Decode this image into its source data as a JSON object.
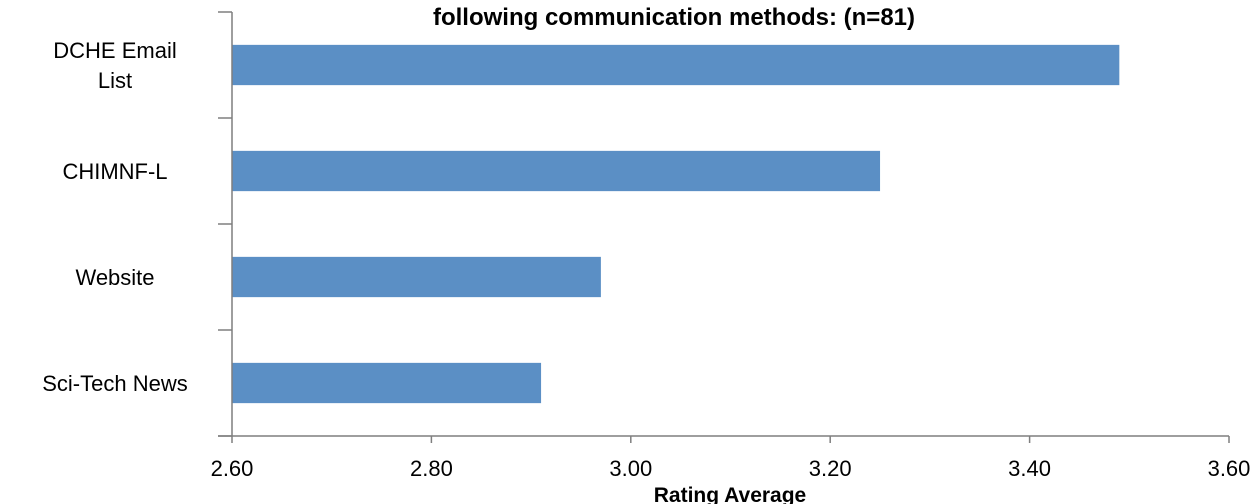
{
  "chart_data": {
    "type": "bar",
    "orientation": "horizontal",
    "title": "following communication methods: (n=81)",
    "xlabel": "Rating Average",
    "ylabel": "",
    "categories": [
      "DCHE Email List",
      "CHIMNF-L",
      "Website",
      "Sci-Tech News"
    ],
    "category_lines": [
      [
        "DCHE Email",
        "List"
      ],
      [
        "CHIMNF-L"
      ],
      [
        "Website"
      ],
      [
        "Sci-Tech News"
      ]
    ],
    "values": [
      3.49,
      3.25,
      2.97,
      2.91
    ],
    "xlim": [
      2.6,
      3.6
    ],
    "xticks": [
      "2.60",
      "2.80",
      "3.00",
      "3.20",
      "3.40",
      "3.60"
    ],
    "grid": false,
    "legend": "none",
    "bar_color": "#5b8fc5",
    "axis_color": "#7f7f7f"
  }
}
